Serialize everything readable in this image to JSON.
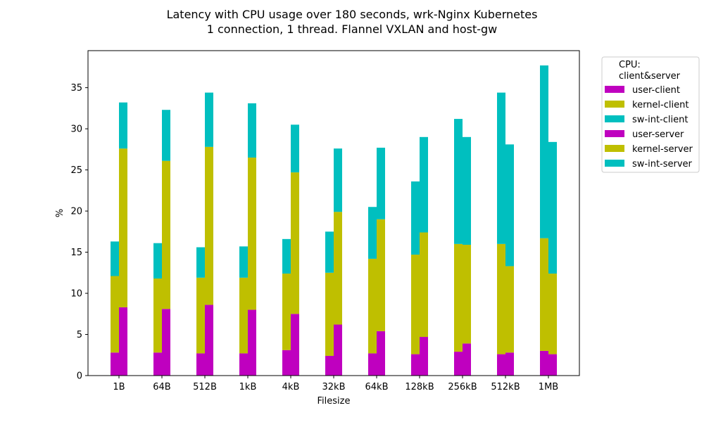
{
  "chart_data": {
    "type": "bar",
    "title_line1": "Latency with CPU usage over 180 seconds, wrk-Nginx Kubernetes",
    "title_line2": "1 connection, 1 thread. Flannel VXLAN and host-gw",
    "xlabel": "Filesize",
    "ylabel": "%",
    "ylim": [
      0,
      39.5
    ],
    "yticks": [
      "0",
      "5",
      "10",
      "15",
      "20",
      "25",
      "30",
      "35"
    ],
    "ytick_values": [
      0,
      5,
      10,
      15,
      20,
      25,
      30,
      35
    ],
    "categories": [
      "1B",
      "64B",
      "512B",
      "1kB",
      "4kB",
      "32kB",
      "64kB",
      "128kB",
      "256kB",
      "512kB",
      "1MB"
    ],
    "legend": {
      "title_line1": "CPU:",
      "title_line2": "client&server",
      "placement": "outside-upper-right",
      "entries": [
        "user-client",
        "kernel-client",
        "sw-int-client",
        "user-server",
        "kernel-server",
        "sw-int-server"
      ]
    },
    "colors": {
      "user": "#bf00bf",
      "kernel": "#bfbf00",
      "sw-int": "#00bfbf"
    },
    "stack_bars": [
      {
        "name": "VXLAN",
        "user": [
          2.8,
          2.8,
          2.7,
          2.7,
          3.1,
          2.4,
          2.7,
          2.6,
          2.9,
          2.6,
          3.0
        ],
        "kernel": [
          9.3,
          9.0,
          9.2,
          9.2,
          9.3,
          10.1,
          11.5,
          12.1,
          13.1,
          13.4,
          13.7
        ],
        "swint": [
          4.2,
          4.3,
          3.7,
          3.8,
          4.2,
          5.0,
          6.3,
          8.9,
          15.2,
          18.4,
          21.0
        ]
      },
      {
        "name": "host-gw",
        "user": [
          8.3,
          8.1,
          8.6,
          8.0,
          7.5,
          6.2,
          5.4,
          4.7,
          3.9,
          2.8,
          2.6
        ],
        "kernel": [
          19.3,
          18.0,
          19.2,
          18.5,
          17.2,
          13.7,
          13.6,
          12.7,
          12.0,
          10.5,
          9.8
        ],
        "swint": [
          5.6,
          6.2,
          6.6,
          6.6,
          5.8,
          7.7,
          8.7,
          11.6,
          13.1,
          14.8,
          16.0
        ]
      }
    ]
  }
}
